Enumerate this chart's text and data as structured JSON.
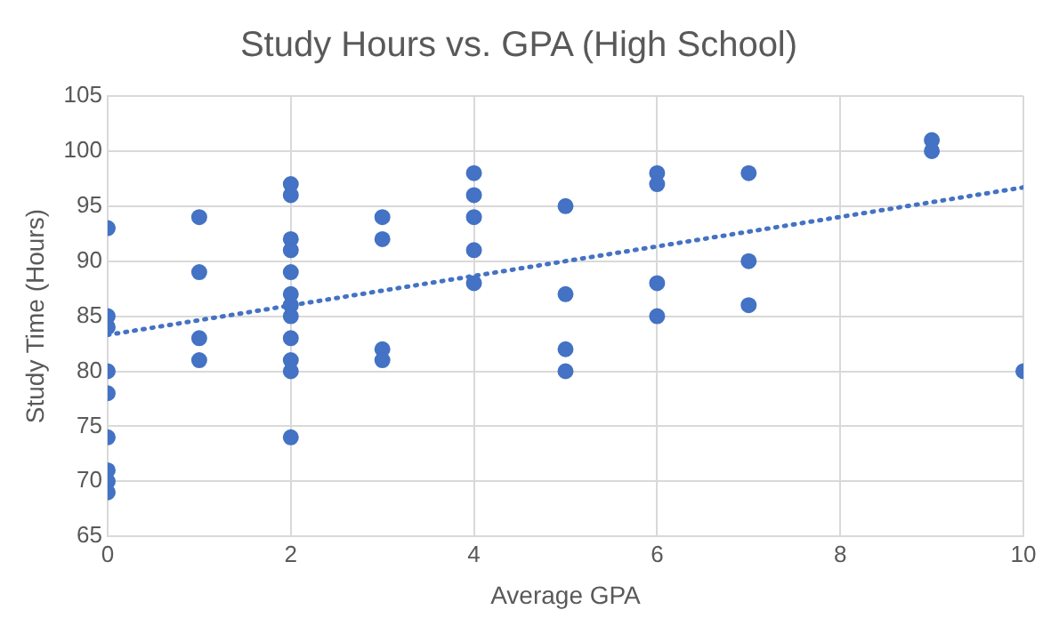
{
  "chart_data": {
    "type": "scatter",
    "title": "Study Hours vs. GPA (High School)",
    "xlabel": "Average GPA",
    "ylabel": "Study Time (Hours)",
    "series": [
      {
        "color": "#4472c4",
        "marker": "circle",
        "x": [
          0,
          0,
          0,
          0,
          0,
          0,
          0,
          0,
          0,
          1,
          1,
          1,
          1,
          2,
          2,
          2,
          2,
          2,
          2,
          2,
          2,
          2,
          2,
          2,
          2,
          3,
          3,
          3,
          3,
          4,
          4,
          4,
          4,
          4,
          5,
          5,
          5,
          5,
          6,
          6,
          6,
          6,
          7,
          7,
          7,
          9,
          9,
          10
        ],
        "values": [
          93,
          85,
          84,
          80,
          78,
          74,
          71,
          70,
          69,
          94,
          89,
          83,
          81,
          97,
          96,
          92,
          91,
          89,
          87,
          86,
          85,
          83,
          81,
          80,
          74,
          94,
          92,
          82,
          81,
          98,
          96,
          94,
          91,
          88,
          95,
          87,
          82,
          80,
          98,
          97,
          88,
          85,
          98,
          90,
          86,
          101,
          100,
          80
        ]
      },
      {
        "type": "line",
        "color": "#4472c4",
        "line_style": "dotted",
        "marker": "none",
        "x": [
          0,
          10
        ],
        "values": [
          83.3,
          96.7
        ]
      }
    ],
    "xlim": [
      0,
      10
    ],
    "xticks": [
      0,
      2,
      4,
      6,
      8,
      10
    ],
    "ylim": [
      65,
      105
    ],
    "yticks": [
      65,
      70,
      75,
      80,
      85,
      90,
      95,
      100,
      105
    ],
    "grid": true,
    "legend": false
  }
}
